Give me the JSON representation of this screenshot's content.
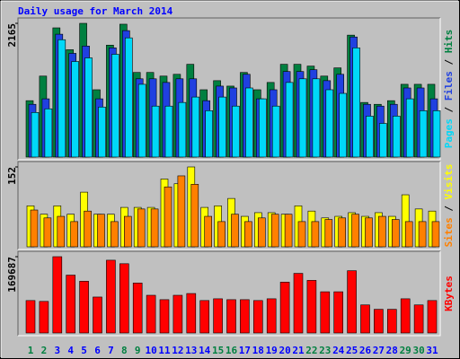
{
  "title": "Daily usage for March 2014",
  "legend_separator": " / ",
  "chart_data": [
    {
      "type": "bar",
      "ylim": [
        0,
        2165
      ],
      "yticks": [
        2165
      ],
      "series": [
        {
          "name": "Hits",
          "color": "#008040",
          "values": [
            913,
            1311,
            2092,
            1738,
            2165,
            1090,
            1812,
            2151,
            1370,
            1370,
            1311,
            1340,
            1502,
            1090,
            1237,
            1149,
            1370,
            1090,
            1208,
            1502,
            1502,
            1473,
            1311,
            1444,
            1974,
            884,
            854,
            913,
            1178,
            1178,
            1178
          ]
        },
        {
          "name": "Files",
          "color": "#2040e0",
          "values": [
            854,
            943,
            1989,
            1679,
            1797,
            943,
            1768,
            2047,
            1267,
            1267,
            1208,
            1267,
            1267,
            913,
            1149,
            1119,
            1340,
            943,
            1090,
            1385,
            1385,
            1414,
            1237,
            1340,
            1944,
            854,
            825,
            854,
            1119,
            1119,
            943
          ]
        },
        {
          "name": "Pages",
          "color": "#00d8f8",
          "values": [
            722,
            781,
            1900,
            1547,
            1606,
            810,
            1664,
            1930,
            1178,
            825,
            825,
            884,
            972,
            751,
            972,
            825,
            1119,
            943,
            825,
            1208,
            1267,
            1267,
            1090,
            1031,
            1768,
            663,
            545,
            663,
            943,
            751,
            751
          ]
        }
      ]
    },
    {
      "type": "bar",
      "ylim": [
        0,
        152
      ],
      "yticks": [
        152
      ],
      "series": [
        {
          "name": "Visits",
          "color": "#ffff00",
          "values": [
            78,
            62,
            78,
            62,
            104,
            62,
            62,
            75,
            75,
            75,
            129,
            120,
            152,
            75,
            78,
            92,
            58,
            65,
            65,
            62,
            78,
            68,
            55,
            58,
            65,
            58,
            65,
            58,
            99,
            72,
            68
          ]
        },
        {
          "name": "Sites",
          "color": "#ff8000",
          "values": [
            70,
            55,
            58,
            48,
            68,
            62,
            48,
            58,
            72,
            72,
            114,
            135,
            119,
            58,
            48,
            62,
            48,
            55,
            62,
            62,
            48,
            48,
            52,
            55,
            62,
            55,
            58,
            52,
            48,
            48,
            48
          ]
        }
      ]
    },
    {
      "type": "bar",
      "ylim": [
        0,
        169687
      ],
      "yticks": [
        169687
      ],
      "series": [
        {
          "name": "KBytes",
          "color": "#ff0000",
          "values": [
            72150,
            70200,
            169687,
            128700,
            115050,
            79950,
            161850,
            154050,
            111150,
            83850,
            74100,
            83850,
            87750,
            72150,
            76050,
            74100,
            74100,
            72150,
            76050,
            113100,
            132600,
            117000,
            91650,
            91650,
            138450,
            62400,
            52650,
            52650,
            76050,
            62400,
            72150
          ]
        }
      ],
      "categories": [
        "1",
        "2",
        "3",
        "4",
        "5",
        "6",
        "7",
        "8",
        "9",
        "10",
        "11",
        "12",
        "13",
        "14",
        "15",
        "16",
        "17",
        "18",
        "19",
        "20",
        "21",
        "22",
        "23",
        "24",
        "25",
        "26",
        "27",
        "28",
        "29",
        "30",
        "31"
      ],
      "category_colors": [
        "#008040",
        "#008040",
        "#0000ff",
        "#0000ff",
        "#0000ff",
        "#0000ff",
        "#0000ff",
        "#008040",
        "#008040",
        "#0000ff",
        "#0000ff",
        "#0000ff",
        "#0000ff",
        "#0000ff",
        "#008040",
        "#008040",
        "#0000ff",
        "#0000ff",
        "#0000ff",
        "#0000ff",
        "#0000ff",
        "#008040",
        "#008040",
        "#0000ff",
        "#0000ff",
        "#0000ff",
        "#0000ff",
        "#0000ff",
        "#008040",
        "#008040",
        "#0000ff"
      ]
    }
  ]
}
